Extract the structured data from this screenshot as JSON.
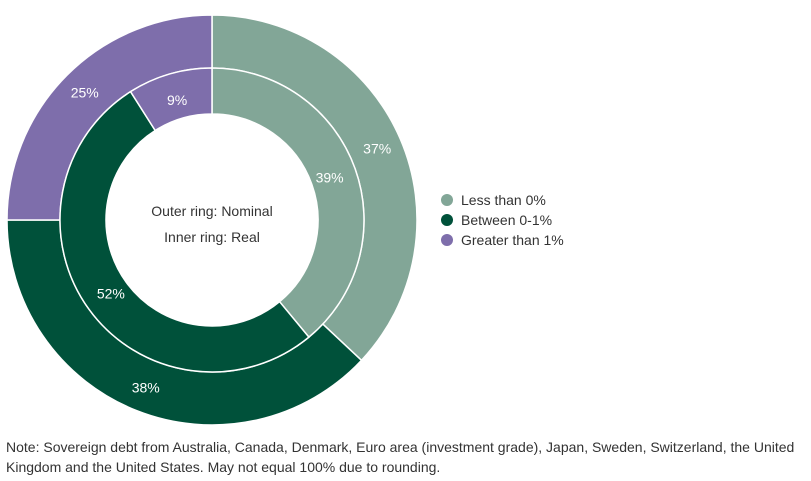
{
  "colors": {
    "less_than_0": "#82a697",
    "between_0_1": "#00513a",
    "greater_than_1": "#7e6eab"
  },
  "center": {
    "line1": "Outer ring: Nominal",
    "line2": "Inner ring: Real"
  },
  "note": "Note: Sovereign debt from Australia, Canada, Denmark, Euro area (investment grade), Japan, Sweden, Switzerland, the United Kingdom and the United States. May not equal 100% due to rounding.",
  "chart_data": {
    "type": "pie",
    "subtype": "nested-donut",
    "categories": [
      "Less than 0%",
      "Between 0-1%",
      "Greater than 1%"
    ],
    "series": [
      {
        "name": "Nominal",
        "ring": "outer",
        "values": [
          37,
          38,
          25
        ],
        "labels": [
          "37%",
          "38%",
          "25%"
        ]
      },
      {
        "name": "Real",
        "ring": "inner",
        "values": [
          39,
          52,
          9
        ],
        "labels": [
          "39%",
          "52%",
          "9%"
        ]
      }
    ],
    "legend": {
      "position": "right",
      "entries": [
        {
          "label": "Less than 0%",
          "color": "#82a697"
        },
        {
          "label": "Between 0-1%",
          "color": "#00513a"
        },
        {
          "label": "Greater than 1%",
          "color": "#7e6eab"
        }
      ]
    }
  }
}
